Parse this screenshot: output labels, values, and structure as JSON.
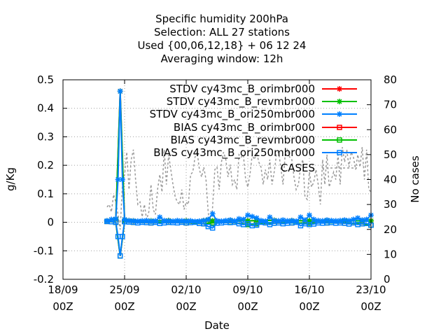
{
  "chart_data": {
    "type": "line",
    "title_lines": [
      "Specific humidity 200hPa",
      "Selection: ALL     27 stations",
      "Used {00,06,12,18} + 06 12 24",
      "Averaging window: 12h"
    ],
    "xlabel": "Date",
    "ylabel": "g/Kg",
    "y2label": "No cases",
    "xlim": [
      0,
      35
    ],
    "ylim": [
      -0.2,
      0.5
    ],
    "y2lim": [
      0,
      80
    ],
    "x_ticks": [
      {
        "x": 0,
        "line1": "18/09",
        "line2": "00Z"
      },
      {
        "x": 7,
        "line1": "25/09",
        "line2": "00Z"
      },
      {
        "x": 14,
        "line1": "02/10",
        "line2": "00Z"
      },
      {
        "x": 21,
        "line1": "09/10",
        "line2": "00Z"
      },
      {
        "x": 28,
        "line1": "16/10",
        "line2": "00Z"
      },
      {
        "x": 35,
        "line1": "23/10",
        "line2": "00Z"
      }
    ],
    "y_ticks": [
      {
        "v": -0.2,
        "label": "-0.2"
      },
      {
        "v": -0.1,
        "label": "-0.1"
      },
      {
        "v": 0,
        "label": "0"
      },
      {
        "v": 0.1,
        "label": "0.1"
      },
      {
        "v": 0.2,
        "label": "0.2"
      },
      {
        "v": 0.3,
        "label": "0.3"
      },
      {
        "v": 0.4,
        "label": "0.4"
      },
      {
        "v": 0.5,
        "label": "0.5"
      }
    ],
    "y2_ticks": [
      {
        "v": 0,
        "label": "0"
      },
      {
        "v": 10,
        "label": "10"
      },
      {
        "v": 20,
        "label": "20"
      },
      {
        "v": 30,
        "label": "30"
      },
      {
        "v": 40,
        "label": "40"
      },
      {
        "v": 50,
        "label": "50"
      },
      {
        "v": 60,
        "label": "60"
      },
      {
        "v": 70,
        "label": "70"
      },
      {
        "v": 80,
        "label": "80"
      }
    ],
    "series": [
      {
        "name": "STDV cy43mc_B_orimbr000",
        "color": "#ff0000",
        "marker": "star",
        "axis": "y",
        "x": [
          5,
          6,
          6.5,
          7,
          7.5,
          8,
          10,
          12,
          14,
          16,
          16.5,
          17,
          19,
          21,
          22,
          24,
          26,
          28,
          30,
          32,
          34,
          35
        ],
        "y": [
          0.005,
          0.01,
          0.46,
          0.005,
          0.006,
          0.005,
          0.005,
          0.006,
          0.005,
          0.006,
          0.008,
          0.005,
          0.007,
          0.005,
          0.006,
          0.007,
          0.006,
          0.005,
          0.006,
          0.005,
          0.005,
          0.005
        ]
      },
      {
        "name": "STDV cy43mc_B_revmbr000",
        "color": "#00c000",
        "marker": "star",
        "axis": "y",
        "x": [
          5,
          6,
          6.5,
          7,
          7.5,
          8,
          10,
          12,
          14,
          16,
          16.5,
          17,
          19,
          21,
          22,
          24,
          26,
          28,
          30,
          32,
          34,
          35
        ],
        "y": [
          0.005,
          0.01,
          0.46,
          0.005,
          0.006,
          0.005,
          0.005,
          0.006,
          0.005,
          0.006,
          0.008,
          0.005,
          0.007,
          0.005,
          0.006,
          0.007,
          0.006,
          0.005,
          0.006,
          0.005,
          0.005,
          0.005
        ]
      },
      {
        "name": "STDV cy43mc_B_ori250mbr000",
        "color": "#0080ff",
        "marker": "star",
        "axis": "y",
        "x": [
          5,
          5.5,
          6,
          6.25,
          6.5,
          6.75,
          7,
          7.5,
          8,
          8.5,
          9,
          9.5,
          10,
          10.5,
          11,
          11.5,
          12,
          12.5,
          13,
          13.5,
          14,
          14.5,
          15,
          15.5,
          16,
          16.5,
          17,
          17.5,
          18,
          18.5,
          19,
          19.5,
          20,
          20.5,
          21,
          21.5,
          22,
          22.5,
          23,
          23.5,
          24,
          24.5,
          25,
          25.5,
          26,
          26.5,
          27,
          27.5,
          28,
          28.5,
          29,
          29.5,
          30,
          30.5,
          31,
          31.5,
          32,
          32.5,
          33,
          33.5,
          34,
          34.5,
          35
        ],
        "y": [
          0.005,
          0.01,
          0.012,
          0.15,
          0.46,
          0.15,
          0.01,
          0.006,
          0.005,
          0.004,
          0.005,
          0.006,
          0.004,
          0.005,
          0.018,
          0.006,
          0.005,
          0.004,
          0.006,
          0.005,
          0.004,
          0.005,
          0.003,
          0.004,
          0.006,
          0.01,
          0.03,
          0.005,
          0.004,
          0.006,
          0.008,
          0.005,
          0.012,
          0.01,
          0.025,
          0.02,
          0.015,
          0.006,
          0.004,
          0.018,
          0.006,
          0.005,
          0.008,
          0.005,
          0.006,
          0.004,
          0.018,
          0.008,
          0.025,
          0.01,
          0.006,
          0.005,
          0.008,
          0.006,
          0.005,
          0.006,
          0.008,
          0.006,
          0.01,
          0.015,
          0.008,
          0.01,
          0.025
        ]
      },
      {
        "name": "BIAS cy43mc_B_orimbr000",
        "color": "#ff0000",
        "marker": "square",
        "axis": "y",
        "x": [
          5,
          6,
          6.5,
          7,
          8,
          10,
          12,
          14,
          16,
          17,
          19,
          21,
          22,
          24,
          26,
          28,
          30,
          32,
          34,
          35
        ],
        "y": [
          0.003,
          0.0,
          -0.118,
          0.002,
          0.0,
          -0.002,
          0.0,
          -0.002,
          -0.005,
          -0.002,
          0.0,
          -0.008,
          -0.005,
          -0.003,
          -0.002,
          -0.003,
          -0.002,
          -0.003,
          -0.005,
          -0.01
        ]
      },
      {
        "name": "BIAS cy43mc_B_revmbr000",
        "color": "#00c000",
        "marker": "square",
        "axis": "y",
        "x": [
          5,
          6,
          6.5,
          7,
          8,
          10,
          12,
          14,
          16,
          17,
          19,
          21,
          22,
          24,
          26,
          28,
          30,
          32,
          34,
          35
        ],
        "y": [
          0.003,
          0.0,
          -0.118,
          0.002,
          0.0,
          -0.002,
          0.0,
          -0.002,
          -0.005,
          -0.002,
          0.0,
          -0.008,
          -0.005,
          -0.003,
          -0.002,
          -0.003,
          -0.002,
          -0.003,
          -0.005,
          -0.01
        ]
      },
      {
        "name": "BIAS cy43mc_B_ori250mbr000",
        "color": "#0080ff",
        "marker": "square",
        "axis": "y",
        "x": [
          5,
          5.5,
          6,
          6.25,
          6.5,
          6.75,
          7,
          7.5,
          8,
          8.5,
          9,
          9.5,
          10,
          10.5,
          11,
          11.5,
          12,
          12.5,
          13,
          13.5,
          14,
          14.5,
          15,
          15.5,
          16,
          16.5,
          17,
          17.5,
          18,
          18.5,
          19,
          19.5,
          20,
          20.5,
          21,
          21.5,
          22,
          22.5,
          23,
          23.5,
          24,
          24.5,
          25,
          25.5,
          26,
          26.5,
          27,
          27.5,
          28,
          28.5,
          29,
          29.5,
          30,
          30.5,
          31,
          31.5,
          32,
          32.5,
          33,
          33.5,
          34,
          34.5,
          35
        ],
        "y": [
          0.003,
          0.002,
          0.0,
          -0.05,
          -0.118,
          -0.05,
          0.002,
          0.001,
          0.0,
          -0.002,
          0.0,
          -0.001,
          -0.002,
          0.0,
          -0.004,
          -0.002,
          0.0,
          -0.001,
          -0.002,
          0.0,
          -0.002,
          -0.001,
          0.0,
          -0.004,
          -0.005,
          -0.015,
          -0.02,
          -0.003,
          -0.002,
          0.0,
          -0.001,
          0.0,
          -0.005,
          -0.008,
          -0.005,
          -0.012,
          -0.01,
          0.0,
          -0.002,
          -0.008,
          -0.003,
          -0.002,
          -0.005,
          -0.003,
          -0.002,
          0.0,
          -0.012,
          -0.005,
          -0.008,
          -0.006,
          -0.002,
          -0.003,
          -0.002,
          -0.001,
          -0.003,
          -0.002,
          -0.003,
          -0.006,
          -0.002,
          -0.008,
          -0.005,
          -0.004,
          -0.01
        ]
      },
      {
        "name": "CASES",
        "color": "#999999",
        "marker": "none",
        "dashed": true,
        "axis": "y2",
        "x": [
          5,
          5.25,
          5.5,
          5.75,
          6,
          6.25,
          6.5,
          6.75,
          7,
          7.25,
          7.5,
          7.75,
          8,
          8.25,
          8.5,
          8.75,
          9,
          9.25,
          9.5,
          9.75,
          10,
          10.25,
          10.5,
          10.75,
          11,
          11.25,
          11.5,
          11.75,
          12,
          12.25,
          12.5,
          12.75,
          13,
          13.25,
          13.5,
          13.75,
          14,
          14.25,
          14.5,
          14.75,
          15,
          15.25,
          15.5,
          15.75,
          16,
          16.25,
          16.5,
          16.75,
          17,
          17.25,
          17.5,
          17.75,
          18,
          18.25,
          18.5,
          18.75,
          19,
          19.25,
          19.5,
          19.75,
          20,
          20.25,
          20.5,
          20.75,
          21,
          21.25,
          21.5,
          21.75,
          22,
          22.25,
          22.5,
          22.75,
          23,
          23.25,
          23.5,
          23.75,
          24,
          24.25,
          24.5,
          24.75,
          25,
          25.25,
          25.5,
          25.75,
          26,
          26.25,
          26.5,
          26.75,
          27,
          27.25,
          27.5,
          27.75,
          28,
          28.25,
          28.5,
          28.75,
          29,
          29.25,
          29.5,
          29.75,
          30,
          30.25,
          30.5,
          30.75,
          31,
          31.25,
          31.5,
          31.75,
          32,
          32.25,
          32.5,
          32.75,
          33,
          33.25,
          33.5,
          33.75,
          34,
          34.25,
          34.5,
          34.75,
          35
        ],
        "y": [
          29,
          30,
          27,
          34,
          31,
          26,
          20,
          38,
          42,
          51,
          36,
          48,
          52,
          40,
          30,
          31,
          25,
          30,
          24,
          27,
          38,
          28,
          26,
          36,
          42,
          35,
          52,
          38,
          50,
          44,
          38,
          33,
          31,
          30,
          36,
          28,
          31,
          30,
          42,
          43,
          49,
          51,
          44,
          41,
          45,
          40,
          27,
          20,
          29,
          44,
          45,
          36,
          47,
          51,
          48,
          41,
          46,
          38,
          40,
          36,
          50,
          49,
          50,
          40,
          37,
          42,
          50,
          48,
          51,
          47,
          45,
          38,
          44,
          40,
          48,
          38,
          43,
          50,
          51,
          45,
          38,
          50,
          52,
          49,
          48,
          41,
          36,
          38,
          45,
          48,
          33,
          32,
          43,
          37,
          39,
          44,
          38,
          30,
          48,
          38,
          50,
          37,
          40,
          43,
          40,
          50,
          38,
          53,
          47,
          52,
          45,
          51,
          49,
          44,
          50,
          45,
          53,
          40,
          52,
          36,
          35
        ]
      }
    ]
  }
}
